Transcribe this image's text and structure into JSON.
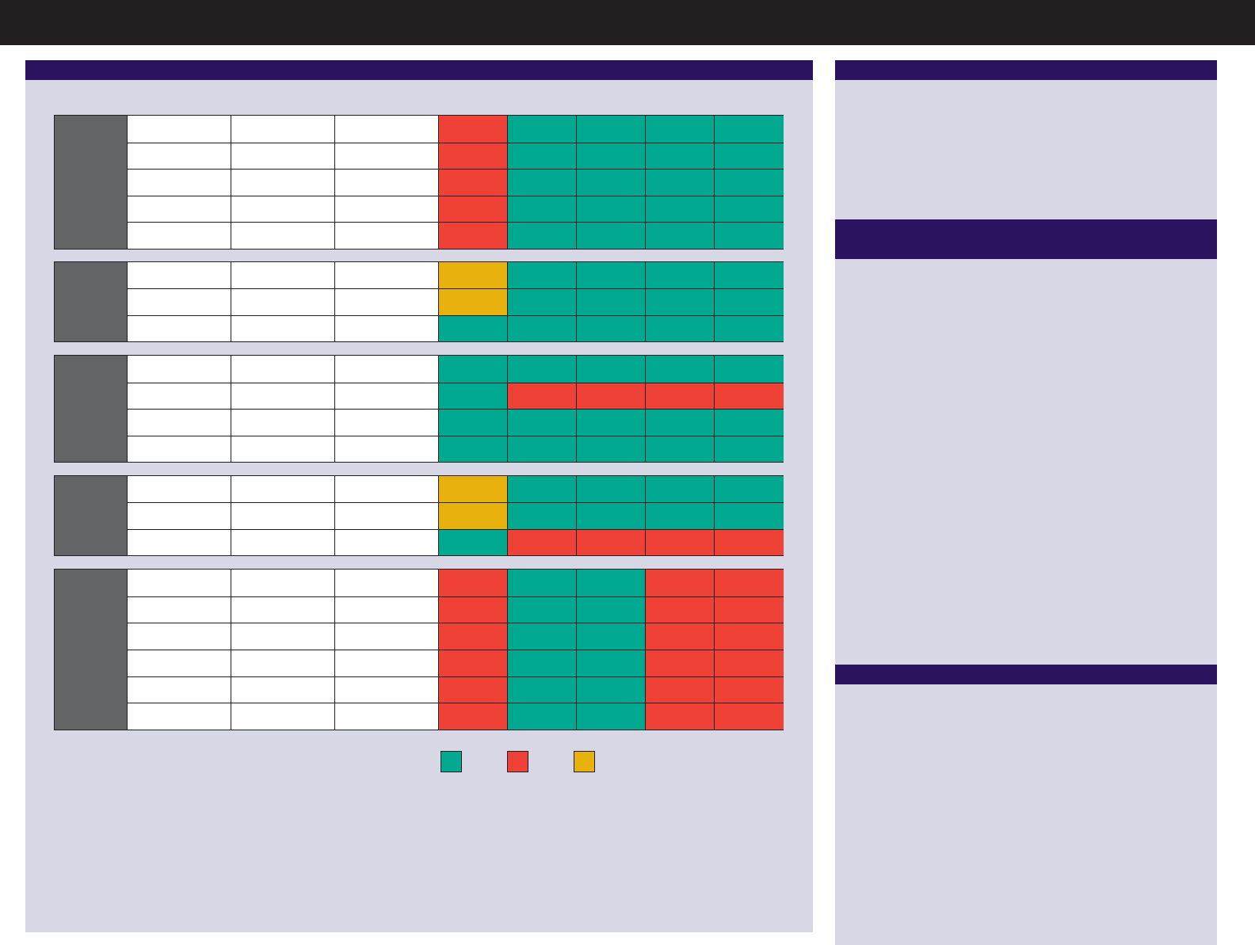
{
  "header": {
    "title": ""
  },
  "left_panel": {
    "title": ""
  },
  "right_panel_1": {
    "title": "",
    "text": ""
  },
  "right_panel_2": {
    "title": "",
    "text": ""
  },
  "right_panel_3": {
    "title": "",
    "text": ""
  },
  "colors": {
    "header_bar": "#231f20",
    "panel_header": "#2c1360",
    "panel_bg": "#d8d7e6",
    "group_label_bg": "#636466",
    "green": "#00a98f",
    "red": "#ef4136",
    "yellow": "#e9b10e"
  },
  "status_matrix": {
    "groups": [
      {
        "label": "",
        "rows": [
          {
            "cells": [
              "",
              "",
              ""
            ],
            "status": [
              "red",
              "green",
              "green",
              "green",
              "green"
            ]
          },
          {
            "cells": [
              "",
              "",
              ""
            ],
            "status": [
              "red",
              "green",
              "green",
              "green",
              "green"
            ]
          },
          {
            "cells": [
              "",
              "",
              ""
            ],
            "status": [
              "red",
              "green",
              "green",
              "green",
              "green"
            ]
          },
          {
            "cells": [
              "",
              "",
              ""
            ],
            "status": [
              "red",
              "green",
              "green",
              "green",
              "green"
            ]
          },
          {
            "cells": [
              "",
              "",
              ""
            ],
            "status": [
              "red",
              "green",
              "green",
              "green",
              "green"
            ]
          }
        ]
      },
      {
        "label": "",
        "rows": [
          {
            "cells": [
              "",
              "",
              ""
            ],
            "status": [
              "yellow",
              "green",
              "green",
              "green",
              "green"
            ]
          },
          {
            "cells": [
              "",
              "",
              ""
            ],
            "status": [
              "yellow",
              "green",
              "green",
              "green",
              "green"
            ]
          },
          {
            "cells": [
              "",
              "",
              ""
            ],
            "status": [
              "green",
              "green",
              "green",
              "green",
              "green"
            ]
          }
        ]
      },
      {
        "label": "",
        "rows": [
          {
            "cells": [
              "",
              "",
              ""
            ],
            "status": [
              "green",
              "green",
              "green",
              "green",
              "green"
            ]
          },
          {
            "cells": [
              "",
              "",
              ""
            ],
            "status": [
              "green",
              "red",
              "red",
              "red",
              "red"
            ]
          },
          {
            "cells": [
              "",
              "",
              ""
            ],
            "status": [
              "green",
              "green",
              "green",
              "green",
              "green"
            ]
          },
          {
            "cells": [
              "",
              "",
              ""
            ],
            "status": [
              "green",
              "green",
              "green",
              "green",
              "green"
            ]
          }
        ]
      },
      {
        "label": "",
        "rows": [
          {
            "cells": [
              "",
              "",
              ""
            ],
            "status": [
              "yellow",
              "green",
              "green",
              "green",
              "green"
            ]
          },
          {
            "cells": [
              "",
              "",
              ""
            ],
            "status": [
              "yellow",
              "green",
              "green",
              "green",
              "green"
            ]
          },
          {
            "cells": [
              "",
              "",
              ""
            ],
            "status": [
              "green",
              "red",
              "red",
              "red",
              "red"
            ]
          }
        ]
      },
      {
        "label": "",
        "rows": [
          {
            "cells": [
              "",
              "",
              ""
            ],
            "status": [
              "red",
              "green",
              "green",
              "red",
              "red"
            ]
          },
          {
            "cells": [
              "",
              "",
              ""
            ],
            "status": [
              "red",
              "green",
              "green",
              "red",
              "red"
            ]
          },
          {
            "cells": [
              "",
              "",
              ""
            ],
            "status": [
              "red",
              "green",
              "green",
              "red",
              "red"
            ]
          },
          {
            "cells": [
              "",
              "",
              ""
            ],
            "status": [
              "red",
              "green",
              "green",
              "red",
              "red"
            ]
          },
          {
            "cells": [
              "",
              "",
              ""
            ],
            "status": [
              "red",
              "green",
              "green",
              "red",
              "red"
            ]
          },
          {
            "cells": [
              "",
              "",
              ""
            ],
            "status": [
              "red",
              "green",
              "green",
              "red",
              "red"
            ]
          }
        ]
      }
    ]
  },
  "legend": [
    {
      "status": "green",
      "label": ""
    },
    {
      "status": "red",
      "label": ""
    },
    {
      "status": "yellow",
      "label": ""
    }
  ],
  "footnote": ""
}
